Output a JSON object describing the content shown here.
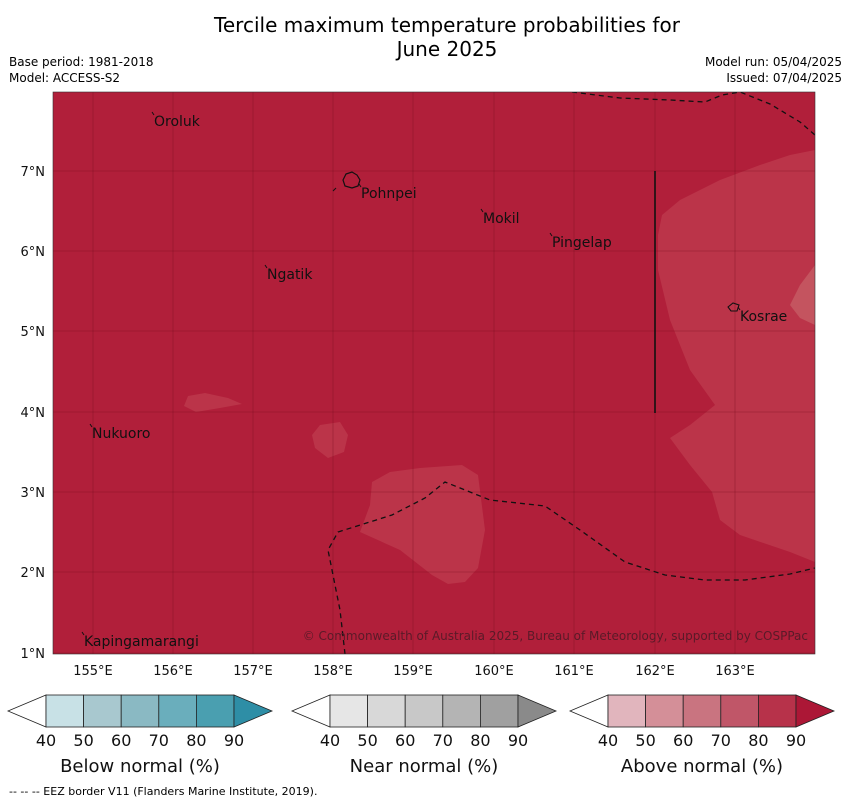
{
  "title_line1": "Tercile maximum temperature probabilities for",
  "title_line2": "June 2025",
  "base_period": "Base period: 1981-2018",
  "model": "Model: ACCESS-S2",
  "model_run": "Model run: 05/04/2025",
  "issued": "Issued: 07/04/2025",
  "copyright": "© Commonwealth of Australia 2025, Bureau of Meteorology, supported by COSPPac",
  "footnote": "--  --  -- EEZ border V11 (Flanders Marine Institute, 2019).",
  "map": {
    "lon_ticks": [
      "155°E",
      "156°E",
      "157°E",
      "158°E",
      "159°E",
      "160°E",
      "161°E",
      "162°E",
      "163°E"
    ],
    "lat_ticks": [
      "7°N",
      "6°N",
      "5°N",
      "4°N",
      "3°N",
      "2°N",
      "1°N"
    ],
    "places": [
      "Oroluk",
      "Pohnpei",
      "Mokil",
      "Pingelap",
      "Ngatik",
      "Kosrae",
      "Nukuoro",
      "Kapingamarangi"
    ],
    "fill_colors": {
      "above_80": "#b11f3a",
      "above_70": "#bb3449",
      "above_60": "#c4545f"
    }
  },
  "colorbars": [
    {
      "label": "Below normal (%)",
      "ticks": [
        "40",
        "50",
        "60",
        "70",
        "80",
        "90"
      ],
      "colors": [
        "#ffffff",
        "#c8e1e6",
        "#a8c8cf",
        "#8ab9c3",
        "#6aaebc",
        "#4a9fb0",
        "#2e8ea6"
      ]
    },
    {
      "label": "Near normal (%)",
      "ticks": [
        "40",
        "50",
        "60",
        "70",
        "80",
        "90"
      ],
      "colors": [
        "#ffffff",
        "#e6e6e6",
        "#d8d8d8",
        "#c8c8c8",
        "#b4b4b4",
        "#a0a0a0",
        "#8a8a8a"
      ]
    },
    {
      "label": "Above normal (%)",
      "ticks": [
        "40",
        "50",
        "60",
        "70",
        "80",
        "90"
      ],
      "colors": [
        "#ffffff",
        "#e1b5bd",
        "#d48f98",
        "#c97480",
        "#c05668",
        "#b7324a",
        "#ac1736"
      ]
    }
  ]
}
